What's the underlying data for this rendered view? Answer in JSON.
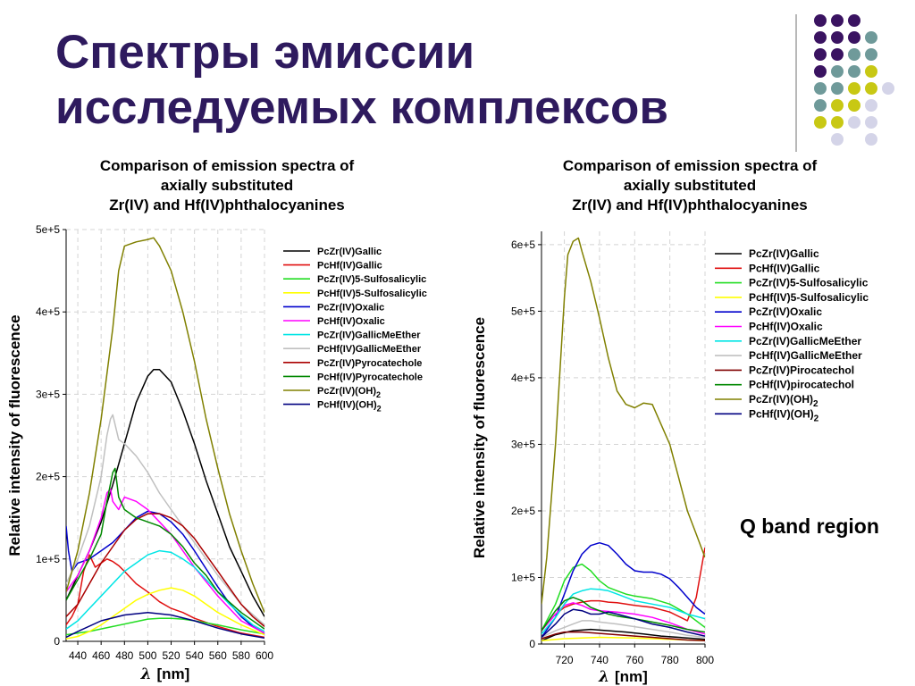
{
  "slide": {
    "title_line1": "Спектры эмиссии",
    "title_line2": "исследуемых комплексов",
    "annotation": "Q band region",
    "colors": {
      "title": "#2e1a5e",
      "dot_purple": "#3a1361",
      "dot_teal": "#6f9a9a",
      "dot_yellow": "#c8c814",
      "dot_lavender": "#d4d4e8"
    }
  },
  "chart_data": [
    {
      "type": "line",
      "title": [
        "Comparison of emission spectra of",
        "axially substituted",
        "Zr(IV) and Hf(IV)phthalocyanines"
      ],
      "xlabel_symbol": "λ",
      "xlabel": "[nm]",
      "ylabel": "Relative intensity of fluorescence",
      "xlim": [
        430,
        600
      ],
      "ylim": [
        0,
        500000
      ],
      "xticks": [
        440,
        460,
        480,
        500,
        520,
        540,
        560,
        580,
        600
      ],
      "yticks": [
        0,
        100000,
        200000,
        300000,
        400000,
        500000
      ],
      "ytick_labels": [
        "0",
        "1e+5",
        "2e+5",
        "3e+5",
        "4e+5",
        "5e+5"
      ],
      "grid": true,
      "legend_position": "right",
      "series": [
        {
          "name": "PcZr(IV)Gallic",
          "color": "#000000",
          "x": [
            430,
            440,
            450,
            460,
            470,
            480,
            490,
            500,
            505,
            510,
            520,
            530,
            540,
            550,
            560,
            570,
            580,
            590,
            600
          ],
          "y": [
            50000,
            80000,
            110000,
            145000,
            190000,
            240000,
            290000,
            322000,
            330000,
            330000,
            315000,
            280000,
            240000,
            195000,
            155000,
            115000,
            85000,
            55000,
            30000
          ]
        },
        {
          "name": "PcHf(IV)Gallic",
          "color": "#e01010",
          "x": [
            430,
            435,
            440,
            445,
            450,
            455,
            460,
            465,
            470,
            475,
            480,
            490,
            500,
            510,
            520,
            530,
            540,
            560,
            580,
            600
          ],
          "y": [
            20000,
            30000,
            45000,
            85000,
            105000,
            90000,
            95000,
            100000,
            97000,
            92000,
            85000,
            70000,
            60000,
            48000,
            40000,
            35000,
            28000,
            18000,
            10000,
            5000
          ]
        },
        {
          "name": "PcZr(IV)5-Sulfosalicylic",
          "color": "#22dd22",
          "x": [
            430,
            450,
            470,
            490,
            500,
            510,
            520,
            530,
            540,
            560,
            580,
            600
          ],
          "y": [
            8000,
            12000,
            18000,
            24000,
            27000,
            28000,
            28000,
            27000,
            25000,
            20000,
            14000,
            9000
          ]
        },
        {
          "name": "PcHf(IV)5-Sulfosalicylic",
          "color": "#ffff00",
          "x": [
            430,
            440,
            450,
            460,
            470,
            480,
            490,
            500,
            510,
            520,
            530,
            540,
            550,
            560,
            580,
            600
          ],
          "y": [
            3000,
            6000,
            12000,
            20000,
            30000,
            40000,
            50000,
            57000,
            62000,
            65000,
            62000,
            55000,
            45000,
            35000,
            20000,
            8000
          ]
        },
        {
          "name": "PcZr(IV)Oxalic",
          "color": "#0000cc",
          "x": [
            430,
            432,
            435,
            440,
            450,
            460,
            470,
            480,
            490,
            500,
            510,
            520,
            530,
            540,
            550,
            560,
            570,
            580,
            590,
            600
          ],
          "y": [
            140000,
            110000,
            85000,
            95000,
            100000,
            110000,
            120000,
            135000,
            150000,
            158000,
            155000,
            145000,
            130000,
            110000,
            88000,
            66000,
            46000,
            30000,
            18000,
            10000
          ]
        },
        {
          "name": "PcHf(IV)Oxalic",
          "color": "#ff00ff",
          "x": [
            430,
            440,
            450,
            460,
            465,
            468,
            470,
            475,
            480,
            490,
            500,
            510,
            520,
            530,
            540,
            560,
            580,
            600
          ],
          "y": [
            60000,
            80000,
            110000,
            150000,
            180000,
            185000,
            170000,
            160000,
            175000,
            170000,
            160000,
            145000,
            130000,
            110000,
            90000,
            55000,
            25000,
            10000
          ]
        },
        {
          "name": "PcZr(IV)GallicMeEther",
          "color": "#00e5e5",
          "x": [
            430,
            440,
            450,
            460,
            470,
            480,
            490,
            500,
            510,
            520,
            530,
            540,
            550,
            560,
            570,
            580,
            590,
            600
          ],
          "y": [
            15000,
            25000,
            40000,
            55000,
            70000,
            85000,
            95000,
            105000,
            110000,
            108000,
            100000,
            90000,
            75000,
            60000,
            45000,
            32000,
            20000,
            12000
          ]
        },
        {
          "name": "PcHf(IV)GallicMeEther",
          "color": "#c0c0c0",
          "x": [
            430,
            440,
            450,
            460,
            465,
            468,
            470,
            475,
            480,
            490,
            500,
            510,
            520,
            530,
            540,
            550,
            560,
            580,
            600
          ],
          "y": [
            70000,
            100000,
            140000,
            200000,
            250000,
            270000,
            275000,
            245000,
            240000,
            225000,
            205000,
            180000,
            160000,
            140000,
            120000,
            100000,
            80000,
            45000,
            20000
          ]
        },
        {
          "name": "PcZr(IV)Pyrocatechole",
          "color": "#aa0000",
          "x": [
            430,
            440,
            450,
            460,
            470,
            480,
            490,
            500,
            510,
            520,
            530,
            540,
            550,
            560,
            570,
            580,
            590,
            600
          ],
          "y": [
            30000,
            45000,
            70000,
            95000,
            115000,
            135000,
            148000,
            155000,
            155000,
            150000,
            140000,
            125000,
            105000,
            85000,
            65000,
            45000,
            30000,
            18000
          ]
        },
        {
          "name": "PcHf(IV)Pyrocatechole",
          "color": "#008800",
          "x": [
            430,
            440,
            450,
            460,
            465,
            470,
            472,
            475,
            480,
            490,
            500,
            510,
            520,
            530,
            540,
            550,
            560,
            580,
            600
          ],
          "y": [
            50000,
            75000,
            100000,
            130000,
            170000,
            205000,
            210000,
            175000,
            160000,
            150000,
            145000,
            140000,
            130000,
            115000,
            95000,
            80000,
            60000,
            35000,
            15000
          ]
        },
        {
          "name": "PcZr(IV)(OH)2",
          "color": "#808000",
          "x": [
            430,
            440,
            450,
            460,
            470,
            475,
            480,
            490,
            500,
            505,
            510,
            520,
            530,
            540,
            550,
            560,
            570,
            580,
            590,
            600
          ],
          "y": [
            60000,
            110000,
            180000,
            270000,
            380000,
            450000,
            480000,
            485000,
            488000,
            490000,
            480000,
            450000,
            400000,
            340000,
            270000,
            210000,
            155000,
            110000,
            70000,
            35000
          ]
        },
        {
          "name": "PcHf(IV)(OH)2",
          "color": "#000080",
          "x": [
            430,
            440,
            460,
            480,
            500,
            520,
            540,
            560,
            580,
            600
          ],
          "y": [
            5000,
            12000,
            25000,
            32000,
            35000,
            32000,
            25000,
            16000,
            9000,
            4000
          ]
        }
      ]
    },
    {
      "type": "line",
      "title": [
        "Comparison of emission spectra of",
        "axially substituted",
        "Zr(IV) and Hf(IV)phthalocyanines"
      ],
      "xlabel_symbol": "λ",
      "xlabel": "[nm]",
      "ylabel": "Relative intensity of fluorescence",
      "xlim": [
        707,
        800
      ],
      "ylim": [
        0,
        620000
      ],
      "xticks": [
        720,
        740,
        760,
        780,
        800
      ],
      "yticks": [
        0,
        100000,
        200000,
        300000,
        400000,
        500000,
        600000
      ],
      "ytick_labels": [
        "0",
        "1e+5",
        "2e+5",
        "3e+5",
        "4e+5",
        "5e+5",
        "6e+5"
      ],
      "grid": true,
      "legend_position": "top-right",
      "series": [
        {
          "name": "PcZr(IV)Gallic",
          "color": "#000000",
          "x": [
            707,
            715,
            725,
            735,
            745,
            755,
            765,
            775,
            785,
            795,
            800
          ],
          "y": [
            5000,
            14000,
            20000,
            22000,
            20000,
            18000,
            15000,
            12000,
            10000,
            8000,
            7000
          ]
        },
        {
          "name": "PcHf(IV)Gallic",
          "color": "#e01010",
          "x": [
            707,
            715,
            720,
            725,
            730,
            735,
            740,
            745,
            750,
            755,
            760,
            770,
            780,
            790,
            795,
            800
          ],
          "y": [
            20000,
            45000,
            55000,
            60000,
            63000,
            65000,
            65000,
            63000,
            62000,
            60000,
            58000,
            55000,
            48000,
            35000,
            70000,
            145000
          ]
        },
        {
          "name": "PcZr(IV)5-Sulfosalicylic",
          "color": "#22dd22",
          "x": [
            707,
            715,
            720,
            725,
            730,
            735,
            740,
            745,
            750,
            755,
            760,
            770,
            780,
            790,
            800
          ],
          "y": [
            20000,
            60000,
            95000,
            115000,
            120000,
            110000,
            95000,
            85000,
            80000,
            75000,
            72000,
            68000,
            60000,
            45000,
            25000
          ]
        },
        {
          "name": "PcHf(IV)5-Sulfosalicylic",
          "color": "#ffff00",
          "x": [
            707,
            720,
            740,
            760,
            780,
            800
          ],
          "y": [
            5000,
            8000,
            10000,
            9000,
            7000,
            5000
          ]
        },
        {
          "name": "PcZr(IV)Oxalic",
          "color": "#0000cc",
          "x": [
            707,
            715,
            720,
            725,
            730,
            735,
            740,
            745,
            750,
            755,
            760,
            765,
            770,
            775,
            780,
            785,
            790,
            795,
            800
          ],
          "y": [
            10000,
            40000,
            75000,
            110000,
            135000,
            148000,
            152000,
            148000,
            135000,
            120000,
            110000,
            108000,
            108000,
            105000,
            98000,
            85000,
            70000,
            55000,
            45000
          ]
        },
        {
          "name": "PcHf(IV)Oxalic",
          "color": "#ff00ff",
          "x": [
            707,
            715,
            720,
            725,
            730,
            735,
            740,
            750,
            760,
            770,
            780,
            790,
            800
          ],
          "y": [
            20000,
            45000,
            58000,
            62000,
            58000,
            52000,
            50000,
            48000,
            45000,
            40000,
            32000,
            22000,
            15000
          ]
        },
        {
          "name": "PcZr(IV)GallicMeEther",
          "color": "#00e5e5",
          "x": [
            707,
            715,
            720,
            725,
            730,
            735,
            740,
            745,
            750,
            755,
            760,
            770,
            780,
            790,
            800
          ],
          "y": [
            15000,
            40000,
            60000,
            75000,
            80000,
            83000,
            82000,
            80000,
            75000,
            70000,
            65000,
            60000,
            55000,
            45000,
            38000
          ]
        },
        {
          "name": "PcHf(IV)GallicMeEther",
          "color": "#c0c0c0",
          "x": [
            707,
            715,
            720,
            725,
            730,
            735,
            740,
            750,
            760,
            770,
            780,
            790,
            800
          ],
          "y": [
            10000,
            20000,
            25000,
            30000,
            35000,
            35000,
            33000,
            30000,
            26000,
            22000,
            18000,
            13000,
            10000
          ]
        },
        {
          "name": "PcZr(IV)Pirocatechol",
          "color": "#800000",
          "x": [
            707,
            715,
            720,
            730,
            740,
            750,
            760,
            770,
            780,
            790,
            800
          ],
          "y": [
            8000,
            15000,
            18000,
            18000,
            16000,
            14000,
            12000,
            10000,
            8000,
            6000,
            5000
          ]
        },
        {
          "name": "PcHf(IV)pirocatechol",
          "color": "#008800",
          "x": [
            707,
            715,
            720,
            725,
            730,
            735,
            740,
            745,
            750,
            760,
            770,
            780,
            790,
            800
          ],
          "y": [
            20000,
            50000,
            65000,
            70000,
            65000,
            55000,
            50000,
            45000,
            42000,
            38000,
            33000,
            28000,
            22000,
            18000
          ]
        },
        {
          "name": "PcZr(IV)(OH)2",
          "color": "#808000",
          "x": [
            707,
            710,
            715,
            720,
            722,
            725,
            728,
            730,
            735,
            740,
            745,
            750,
            755,
            760,
            765,
            770,
            775,
            780,
            785,
            790,
            795,
            800
          ],
          "y": [
            60000,
            130000,
            300000,
            520000,
            585000,
            605000,
            610000,
            590000,
            545000,
            490000,
            430000,
            380000,
            360000,
            355000,
            362000,
            360000,
            330000,
            300000,
            250000,
            200000,
            165000,
            130000
          ]
        },
        {
          "name": "PcHf(IV)(OH)2",
          "color": "#000080",
          "x": [
            707,
            715,
            720,
            725,
            730,
            735,
            740,
            745,
            750,
            760,
            770,
            780,
            790,
            800
          ],
          "y": [
            10000,
            30000,
            45000,
            52000,
            50000,
            45000,
            45000,
            48000,
            45000,
            38000,
            30000,
            25000,
            18000,
            12000
          ]
        }
      ]
    }
  ]
}
